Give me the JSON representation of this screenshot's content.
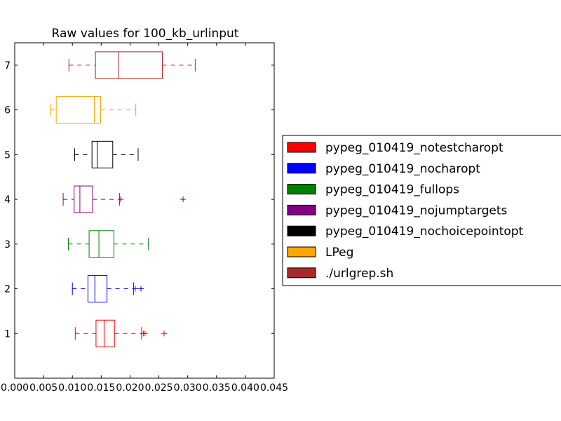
{
  "chart_data": {
    "type": "boxplot",
    "orientation": "horizontal",
    "title": "Raw values for 100_kb_urlinput",
    "xlabel": "",
    "ylabel": "",
    "xlim": [
      0.0,
      0.045
    ],
    "ylim": [
      0,
      7.5
    ],
    "xticks": [
      "0.000",
      "0.005",
      "0.010",
      "0.015",
      "0.020",
      "0.025",
      "0.030",
      "0.035",
      "0.040",
      "0.045"
    ],
    "yticks": [
      "1",
      "2",
      "3",
      "4",
      "5",
      "6",
      "7"
    ],
    "grid": false,
    "legend": {
      "placement": "right"
    },
    "series": [
      {
        "name": "pypeg_010419_notestcharopt",
        "position": 1,
        "color": "#ff0000",
        "box_color": "#ff0000",
        "whisker_low": 0.0105,
        "q1": 0.0141,
        "median": 0.0155,
        "q3": 0.0173,
        "whisker_high": 0.022,
        "outliers": [
          0.0223,
          0.0226,
          0.0259
        ]
      },
      {
        "name": "pypeg_010419_nocharopt",
        "position": 2,
        "color": "#0000ff",
        "box_color": "#0000ff",
        "whisker_low": 0.01,
        "q1": 0.0127,
        "median": 0.0139,
        "q3": 0.016,
        "whisker_high": 0.0206,
        "outliers": [
          0.0209,
          0.0219
        ]
      },
      {
        "name": "pypeg_010419_fullops",
        "position": 3,
        "color": "#008000",
        "box_color": "#008000",
        "whisker_low": 0.0093,
        "q1": 0.0129,
        "median": 0.0146,
        "q3": 0.0172,
        "whisker_high": 0.0232,
        "outliers": []
      },
      {
        "name": "pypeg_010419_nojumptargets",
        "position": 4,
        "color": "#800080",
        "box_color": "#800080",
        "whisker_low": 0.0084,
        "q1": 0.0103,
        "median": 0.0113,
        "q3": 0.0135,
        "whisker_high": 0.0182,
        "outliers": [
          0.0184,
          0.0292
        ]
      },
      {
        "name": "pypeg_010419_nochoicepointopt",
        "position": 5,
        "color": "#000000",
        "box_color": "#000000",
        "whisker_low": 0.0104,
        "q1": 0.0134,
        "median": 0.0143,
        "q3": 0.017,
        "whisker_high": 0.0214,
        "outliers": []
      },
      {
        "name": "LPeg",
        "position": 6,
        "color": "#ffa500",
        "box_color": "#ffa500",
        "whisker_low": 0.0062,
        "q1": 0.0072,
        "median": 0.0138,
        "q3": 0.0149,
        "whisker_high": 0.021,
        "outliers": []
      },
      {
        "name": "./urlgrep.sh",
        "position": 7,
        "color": "#a52a2a",
        "box_color": "#b22222",
        "whisker_low": 0.0094,
        "q1": 0.014,
        "median": 0.018,
        "q3": 0.0256,
        "whisker_high": 0.0313,
        "outliers": []
      }
    ]
  }
}
